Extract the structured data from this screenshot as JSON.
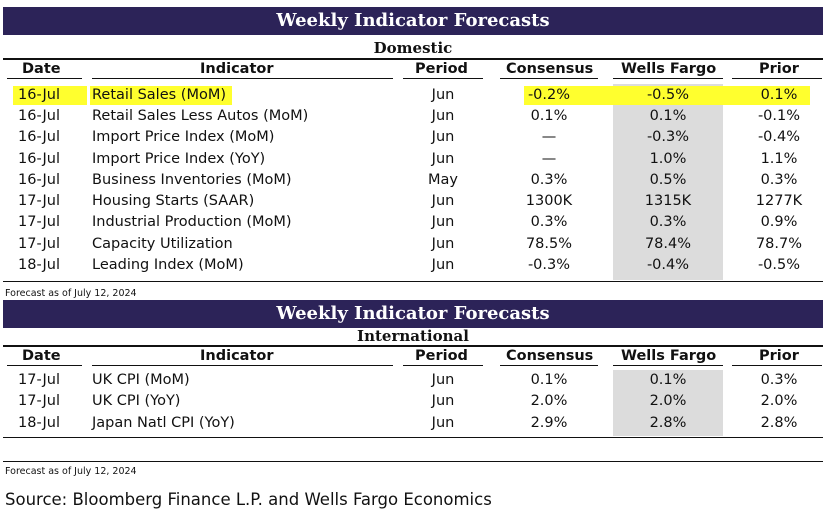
{
  "domestic": {
    "banner": "Weekly Indicator Forecasts",
    "section": "Domestic",
    "headers": [
      "Date",
      "Indicator",
      "Period",
      "Consensus",
      "Wells Fargo",
      "Prior"
    ],
    "rows": [
      {
        "date": "16-Jul",
        "indicator": "Retail Sales (MoM)",
        "period": "Jun",
        "consensus": "-0.2%",
        "wells_fargo": "-0.5%",
        "prior": "0.1%",
        "highlighted": true
      },
      {
        "date": "16-Jul",
        "indicator": "Retail Sales Less Autos (MoM)",
        "period": "Jun",
        "consensus": "0.1%",
        "wells_fargo": "0.1%",
        "prior": "-0.1%"
      },
      {
        "date": "16-Jul",
        "indicator": "Import Price Index (MoM)",
        "period": "Jun",
        "consensus": "—",
        "wells_fargo": "-0.3%",
        "prior": "-0.4%"
      },
      {
        "date": "16-Jul",
        "indicator": "Import Price Index (YoY)",
        "period": "Jun",
        "consensus": "—",
        "wells_fargo": "1.0%",
        "prior": "1.1%"
      },
      {
        "date": "16-Jul",
        "indicator": "Business Inventories (MoM)",
        "period": "May",
        "consensus": "0.3%",
        "wells_fargo": "0.5%",
        "prior": "0.3%"
      },
      {
        "date": "17-Jul",
        "indicator": "Housing Starts (SAAR)",
        "period": "Jun",
        "consensus": "1300K",
        "wells_fargo": "1315K",
        "prior": "1277K"
      },
      {
        "date": "17-Jul",
        "indicator": "Industrial Production (MoM)",
        "period": "Jun",
        "consensus": "0.3%",
        "wells_fargo": "0.3%",
        "prior": "0.9%"
      },
      {
        "date": "17-Jul",
        "indicator": "Capacity Utilization",
        "period": "Jun",
        "consensus": "78.5%",
        "wells_fargo": "78.4%",
        "prior": "78.7%"
      },
      {
        "date": "18-Jul",
        "indicator": "Leading Index (MoM)",
        "period": "Jun",
        "consensus": "-0.3%",
        "wells_fargo": "-0.4%",
        "prior": "-0.5%"
      }
    ],
    "forecast_note": "Forecast as of July 12, 2024"
  },
  "international": {
    "banner": "Weekly Indicator Forecasts",
    "section": "International",
    "headers": [
      "Date",
      "Indicator",
      "Period",
      "Consensus",
      "Wells Fargo",
      "Prior"
    ],
    "rows": [
      {
        "date": "17-Jul",
        "indicator": "UK CPI (MoM)",
        "period": "Jun",
        "consensus": "0.1%",
        "wells_fargo": "0.1%",
        "prior": "0.3%"
      },
      {
        "date": "17-Jul",
        "indicator": "UK CPI (YoY)",
        "period": "Jun",
        "consensus": "2.0%",
        "wells_fargo": "2.0%",
        "prior": "2.0%"
      },
      {
        "date": "18-Jul",
        "indicator": "Japan Natl CPI (YoY)",
        "period": "Jun",
        "consensus": "2.9%",
        "wells_fargo": "2.8%",
        "prior": "2.8%"
      }
    ],
    "forecast_note": "Forecast as of July 12, 2024"
  },
  "source": "Source: Bloomberg Finance L.P. and Wells Fargo Economics",
  "colors": {
    "banner": "#2c2358",
    "highlight": "#ffff2e",
    "shade": "#dcdcdc"
  }
}
